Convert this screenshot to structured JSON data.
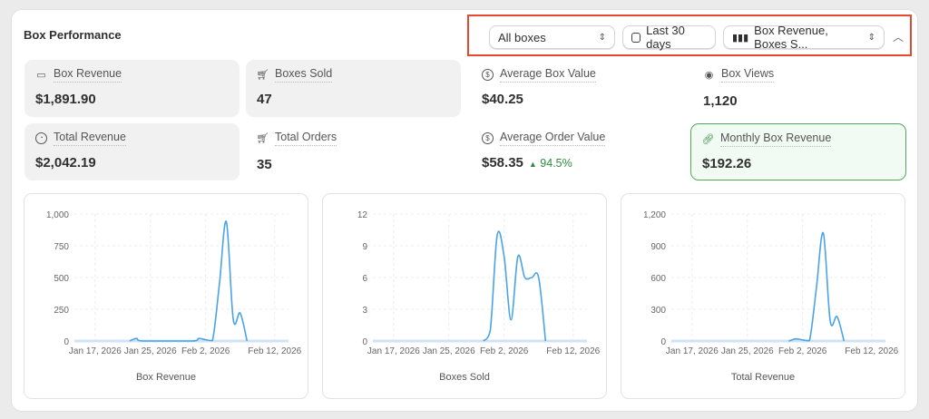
{
  "header": {
    "title": "Box Performance"
  },
  "controls": {
    "box_filter": "All boxes",
    "date_range": "Last 30 days",
    "metrics_select": "Box Revenue, Boxes S...",
    "icons": {
      "calendar": "calendar-icon",
      "chart": "bar-chart-icon",
      "collapse": "chevron-up-icon"
    }
  },
  "metrics": [
    {
      "label": "Box Revenue",
      "value": "$1,891.90",
      "icon": "cash-icon"
    },
    {
      "label": "Boxes Sold",
      "value": "47",
      "icon": "cart-icon"
    },
    {
      "label": "Average Box Value",
      "value": "$40.25",
      "icon": "dollar-circle-icon"
    },
    {
      "label": "Box Views",
      "value": "1,120",
      "icon": "eye-icon"
    },
    {
      "label": "Total Revenue",
      "value": "$2,042.19",
      "icon": "pie-icon"
    },
    {
      "label": "Total Orders",
      "value": "35",
      "icon": "cart-icon"
    },
    {
      "label": "Average Order Value",
      "value": "$58.35",
      "delta": "94.5%",
      "icon": "dollar-circle-icon"
    },
    {
      "label": "Monthly Box Revenue",
      "value": "$192.26",
      "icon": "link-icon"
    }
  ],
  "colors": {
    "line": "#4aa3e8",
    "highlight_border": "#51a85c",
    "delta": "#2f8a3c"
  },
  "chart_data": [
    {
      "type": "line",
      "xlabel": "Box Revenue",
      "x_ticks": [
        "Jan 17, 2026",
        "Jan 25, 2026",
        "Feb 2, 2026",
        "Feb 12, 2026"
      ],
      "y_ticks": [
        "0",
        "250",
        "500",
        "750",
        "1,000"
      ],
      "ylim": [
        0,
        1000
      ],
      "grid": true,
      "points": [
        [
          "2026-01-22",
          0
        ],
        [
          "2026-01-23",
          20
        ],
        [
          "2026-01-24",
          0
        ],
        [
          "2026-01-31",
          0
        ],
        [
          "2026-02-01",
          20
        ],
        [
          "2026-02-02",
          10
        ],
        [
          "2026-02-03",
          5
        ],
        [
          "2026-02-04",
          450
        ],
        [
          "2026-02-05",
          940
        ],
        [
          "2026-02-06",
          170
        ],
        [
          "2026-02-07",
          220
        ],
        [
          "2026-02-08",
          0
        ]
      ]
    },
    {
      "type": "line",
      "xlabel": "Boxes Sold",
      "x_ticks": [
        "Jan 17, 2026",
        "Jan 25, 2026",
        "Feb 2, 2026",
        "Feb 12, 2026"
      ],
      "y_ticks": [
        "0",
        "3",
        "6",
        "9",
        "12"
      ],
      "ylim": [
        0,
        12
      ],
      "grid": true,
      "points": [
        [
          "2026-01-30",
          0
        ],
        [
          "2026-01-31",
          1
        ],
        [
          "2026-02-01",
          10
        ],
        [
          "2026-02-02",
          8
        ],
        [
          "2026-02-03",
          2
        ],
        [
          "2026-02-04",
          8
        ],
        [
          "2026-02-05",
          6
        ],
        [
          "2026-02-06",
          6
        ],
        [
          "2026-02-07",
          6
        ],
        [
          "2026-02-08",
          0
        ]
      ]
    },
    {
      "type": "line",
      "xlabel": "Total Revenue",
      "x_ticks": [
        "Jan 17, 2026",
        "Jan 25, 2026",
        "Feb 2, 2026",
        "Feb 12, 2026"
      ],
      "y_ticks": [
        "0",
        "300",
        "600",
        "900",
        "1,200"
      ],
      "ylim": [
        0,
        1200
      ],
      "grid": true,
      "points": [
        [
          "2026-01-31",
          0
        ],
        [
          "2026-02-01",
          20
        ],
        [
          "2026-02-02",
          10
        ],
        [
          "2026-02-03",
          5
        ],
        [
          "2026-02-04",
          500
        ],
        [
          "2026-02-05",
          1020
        ],
        [
          "2026-02-06",
          190
        ],
        [
          "2026-02-07",
          230
        ],
        [
          "2026-02-08",
          0
        ]
      ]
    }
  ]
}
